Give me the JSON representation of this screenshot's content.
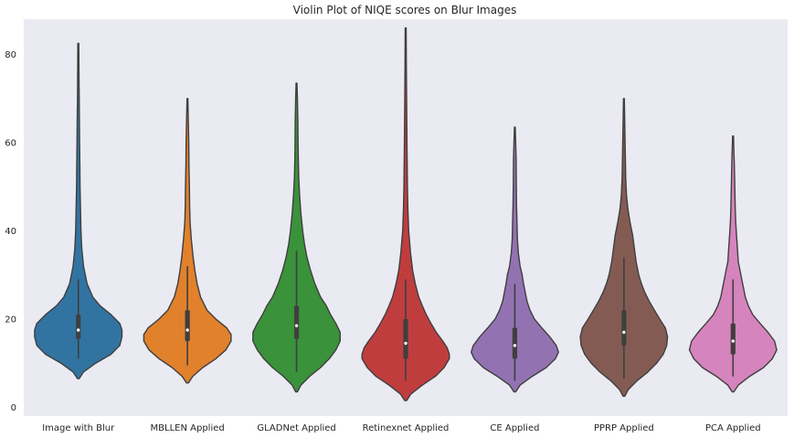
{
  "chart_data": {
    "type": "violin",
    "title": "Violin Plot of NIQE scores on Blur Images",
    "xlabel": "",
    "ylabel": "",
    "ylim": [
      -2,
      88
    ],
    "yticks": [
      0,
      20,
      40,
      60,
      80
    ],
    "grid": false,
    "background": "#eaeaf2",
    "categories": [
      "Image with Blur",
      "MBLLEN Applied",
      "GLADNet Applied",
      "Retinexnet Applied",
      "CE Applied",
      "PPRP Applied",
      "PCA Applied"
    ],
    "series": [
      {
        "category": "Image with Blur",
        "color": "#3274a1",
        "min": 6.5,
        "max": 82.5,
        "q1": 15.5,
        "median": 17.5,
        "q3": 21,
        "whisker_low": 11,
        "whisker_high": 29,
        "mode": 17.5,
        "profile": [
          [
            6.5,
            0.02
          ],
          [
            8,
            0.12
          ],
          [
            10,
            0.4
          ],
          [
            12,
            0.75
          ],
          [
            14,
            0.95
          ],
          [
            16,
            1.0
          ],
          [
            17.5,
            1.0
          ],
          [
            19,
            0.95
          ],
          [
            21,
            0.75
          ],
          [
            23,
            0.5
          ],
          [
            25,
            0.33
          ],
          [
            28,
            0.2
          ],
          [
            32,
            0.12
          ],
          [
            36,
            0.08
          ],
          [
            40,
            0.06
          ],
          [
            45,
            0.05
          ],
          [
            50,
            0.04
          ],
          [
            55,
            0.035
          ],
          [
            60,
            0.03
          ],
          [
            65,
            0.025
          ],
          [
            70,
            0.02
          ],
          [
            76,
            0.015
          ],
          [
            82.5,
            0.01
          ]
        ]
      },
      {
        "category": "MBLLEN Applied",
        "color": "#e1812c",
        "min": 5.5,
        "max": 70,
        "q1": 15,
        "median": 17.5,
        "q3": 22,
        "whisker_low": 9.5,
        "whisker_high": 32,
        "mode": 16.5,
        "profile": [
          [
            5.5,
            0.02
          ],
          [
            7,
            0.12
          ],
          [
            9,
            0.35
          ],
          [
            11,
            0.65
          ],
          [
            13,
            0.88
          ],
          [
            15,
            1.0
          ],
          [
            16.5,
            1.0
          ],
          [
            18,
            0.9
          ],
          [
            20,
            0.65
          ],
          [
            22,
            0.45
          ],
          [
            25,
            0.3
          ],
          [
            28,
            0.22
          ],
          [
            31,
            0.17
          ],
          [
            34,
            0.13
          ],
          [
            38,
            0.09
          ],
          [
            42,
            0.06
          ],
          [
            46,
            0.05
          ],
          [
            50,
            0.045
          ],
          [
            55,
            0.035
          ],
          [
            60,
            0.03
          ],
          [
            65,
            0.02
          ],
          [
            70,
            0.01
          ]
        ]
      },
      {
        "category": "GLADNet Applied",
        "color": "#3a923a",
        "min": 3.5,
        "max": 73.5,
        "q1": 15.5,
        "median": 18.5,
        "q3": 23,
        "whisker_low": 8,
        "whisker_high": 35.5,
        "mode": 17,
        "profile": [
          [
            3.5,
            0.02
          ],
          [
            5,
            0.1
          ],
          [
            7,
            0.3
          ],
          [
            9,
            0.55
          ],
          [
            11,
            0.75
          ],
          [
            13,
            0.9
          ],
          [
            15,
            1.0
          ],
          [
            17,
            1.0
          ],
          [
            19,
            0.9
          ],
          [
            21,
            0.78
          ],
          [
            23,
            0.68
          ],
          [
            25,
            0.55
          ],
          [
            28,
            0.42
          ],
          [
            31,
            0.32
          ],
          [
            34,
            0.24
          ],
          [
            37,
            0.18
          ],
          [
            40,
            0.14
          ],
          [
            44,
            0.1
          ],
          [
            48,
            0.07
          ],
          [
            52,
            0.05
          ],
          [
            56,
            0.04
          ],
          [
            60,
            0.035
          ],
          [
            65,
            0.03
          ],
          [
            70,
            0.02
          ],
          [
            73.5,
            0.01
          ]
        ]
      },
      {
        "category": "Retinexnet Applied",
        "color": "#c03d3e",
        "min": 1.5,
        "max": 86,
        "q1": 11,
        "median": 14.5,
        "q3": 20,
        "whisker_low": 6,
        "whisker_high": 29,
        "mode": 12,
        "profile": [
          [
            1.5,
            0.02
          ],
          [
            3,
            0.12
          ],
          [
            5,
            0.38
          ],
          [
            7,
            0.68
          ],
          [
            9,
            0.88
          ],
          [
            11,
            1.0
          ],
          [
            12,
            1.0
          ],
          [
            13.5,
            0.95
          ],
          [
            15,
            0.85
          ],
          [
            17,
            0.7
          ],
          [
            19,
            0.58
          ],
          [
            21,
            0.47
          ],
          [
            23,
            0.38
          ],
          [
            25,
            0.3
          ],
          [
            28,
            0.22
          ],
          [
            31,
            0.16
          ],
          [
            35,
            0.11
          ],
          [
            40,
            0.07
          ],
          [
            45,
            0.05
          ],
          [
            50,
            0.04
          ],
          [
            60,
            0.03
          ],
          [
            70,
            0.02
          ],
          [
            78,
            0.015
          ],
          [
            86,
            0.01
          ]
        ]
      },
      {
        "category": "CE Applied",
        "color": "#9372b2",
        "min": 3.5,
        "max": 63.5,
        "q1": 11,
        "median": 14,
        "q3": 18,
        "whisker_low": 6,
        "whisker_high": 28,
        "mode": 12.5,
        "profile": [
          [
            3.5,
            0.02
          ],
          [
            5,
            0.12
          ],
          [
            7,
            0.4
          ],
          [
            9,
            0.72
          ],
          [
            11,
            0.93
          ],
          [
            12.5,
            1.0
          ],
          [
            14,
            0.95
          ],
          [
            16,
            0.8
          ],
          [
            18,
            0.62
          ],
          [
            20,
            0.45
          ],
          [
            22,
            0.35
          ],
          [
            24,
            0.28
          ],
          [
            26,
            0.24
          ],
          [
            28,
            0.2
          ],
          [
            30,
            0.17
          ],
          [
            32,
            0.12
          ],
          [
            35,
            0.08
          ],
          [
            38,
            0.06
          ],
          [
            42,
            0.05
          ],
          [
            46,
            0.04
          ],
          [
            50,
            0.035
          ],
          [
            56,
            0.03
          ],
          [
            60,
            0.02
          ],
          [
            63.5,
            0.01
          ]
        ]
      },
      {
        "category": "PPRP Applied",
        "color": "#845b53",
        "min": 2.5,
        "max": 70,
        "q1": 14,
        "median": 17,
        "q3": 22,
        "whisker_low": 6.5,
        "whisker_high": 34,
        "mode": 16,
        "profile": [
          [
            2.5,
            0.02
          ],
          [
            4,
            0.1
          ],
          [
            6,
            0.3
          ],
          [
            8,
            0.55
          ],
          [
            10,
            0.75
          ],
          [
            12,
            0.9
          ],
          [
            14,
            0.98
          ],
          [
            16,
            1.0
          ],
          [
            18,
            0.95
          ],
          [
            20,
            0.82
          ],
          [
            22,
            0.7
          ],
          [
            24,
            0.58
          ],
          [
            26,
            0.48
          ],
          [
            28,
            0.4
          ],
          [
            30,
            0.34
          ],
          [
            33,
            0.28
          ],
          [
            36,
            0.24
          ],
          [
            39,
            0.2
          ],
          [
            42,
            0.14
          ],
          [
            45,
            0.09
          ],
          [
            48,
            0.06
          ],
          [
            52,
            0.04
          ],
          [
            58,
            0.03
          ],
          [
            64,
            0.02
          ],
          [
            70,
            0.01
          ]
        ]
      },
      {
        "category": "PCA Applied",
        "color": "#d684bd",
        "min": 3.5,
        "max": 61.5,
        "q1": 12,
        "median": 15,
        "q3": 19,
        "whisker_low": 7,
        "whisker_high": 29,
        "mode": 13,
        "profile": [
          [
            3.5,
            0.02
          ],
          [
            5,
            0.12
          ],
          [
            7,
            0.38
          ],
          [
            9,
            0.7
          ],
          [
            11,
            0.9
          ],
          [
            13,
            1.0
          ],
          [
            15,
            0.95
          ],
          [
            17,
            0.8
          ],
          [
            19,
            0.62
          ],
          [
            21,
            0.45
          ],
          [
            23,
            0.35
          ],
          [
            25,
            0.28
          ],
          [
            27,
            0.24
          ],
          [
            29,
            0.2
          ],
          [
            31,
            0.16
          ],
          [
            33,
            0.12
          ],
          [
            36,
            0.1
          ],
          [
            39,
            0.08
          ],
          [
            42,
            0.06
          ],
          [
            45,
            0.05
          ],
          [
            50,
            0.04
          ],
          [
            55,
            0.03
          ],
          [
            58,
            0.02
          ],
          [
            61.5,
            0.01
          ]
        ]
      }
    ]
  }
}
